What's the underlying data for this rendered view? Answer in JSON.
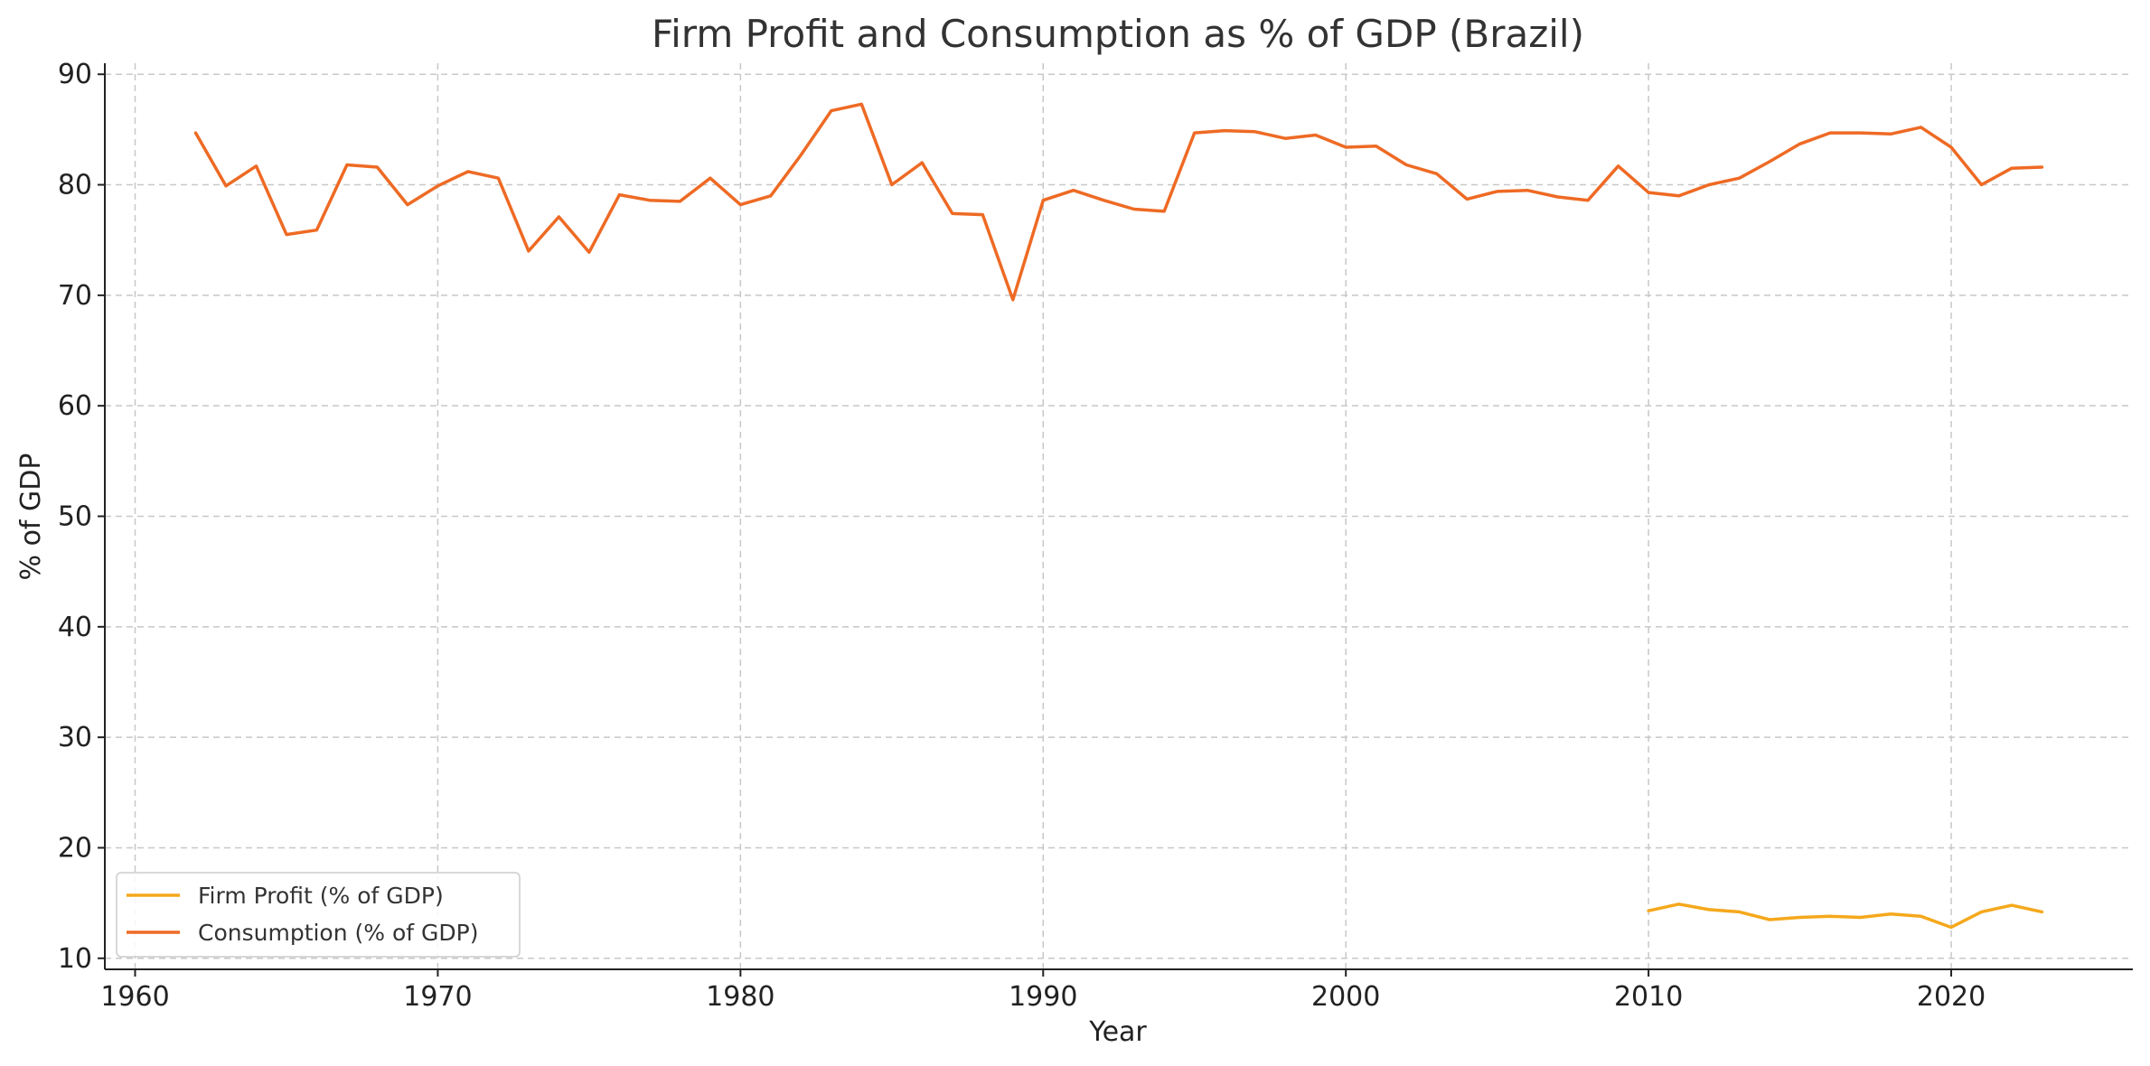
{
  "chart_data": {
    "type": "line",
    "title": "Firm Profit and Consumption as % of GDP (Brazil)",
    "xlabel": "Year",
    "ylabel": "% of GDP",
    "xlim": [
      1959,
      2026
    ],
    "ylim": [
      9,
      91
    ],
    "xticks": [
      1960,
      1970,
      1980,
      1990,
      2000,
      2010,
      2020
    ],
    "yticks": [
      10,
      20,
      30,
      40,
      50,
      60,
      70,
      80,
      90
    ],
    "grid": true,
    "legend_position": "lower-left",
    "series": [
      {
        "name": "Firm Profit (% of GDP)",
        "color": "#f5a81c",
        "points": [
          [
            2010,
            14.3
          ],
          [
            2011,
            14.9
          ],
          [
            2012,
            14.4
          ],
          [
            2013,
            14.2
          ],
          [
            2014,
            13.5
          ],
          [
            2015,
            13.7
          ],
          [
            2016,
            13.8
          ],
          [
            2017,
            13.7
          ],
          [
            2018,
            14.0
          ],
          [
            2019,
            13.8
          ],
          [
            2020,
            12.8
          ],
          [
            2021,
            14.2
          ],
          [
            2022,
            14.8
          ],
          [
            2023,
            14.2
          ]
        ]
      },
      {
        "name": "Consumption (% of GDP)",
        "color": "#ee6a24",
        "points": [
          [
            1962,
            84.7
          ],
          [
            1963,
            79.9
          ],
          [
            1964,
            81.7
          ],
          [
            1965,
            75.5
          ],
          [
            1966,
            75.9
          ],
          [
            1967,
            81.8
          ],
          [
            1968,
            81.6
          ],
          [
            1969,
            78.2
          ],
          [
            1970,
            79.9
          ],
          [
            1971,
            81.2
          ],
          [
            1972,
            80.6
          ],
          [
            1973,
            74.0
          ],
          [
            1974,
            77.1
          ],
          [
            1975,
            73.9
          ],
          [
            1976,
            79.1
          ],
          [
            1977,
            78.6
          ],
          [
            1978,
            78.5
          ],
          [
            1979,
            80.6
          ],
          [
            1980,
            78.2
          ],
          [
            1981,
            79.0
          ],
          [
            1982,
            82.7
          ],
          [
            1983,
            86.7
          ],
          [
            1984,
            87.3
          ],
          [
            1985,
            80.0
          ],
          [
            1986,
            82.0
          ],
          [
            1987,
            77.4
          ],
          [
            1988,
            77.3
          ],
          [
            1989,
            69.6
          ],
          [
            1990,
            78.6
          ],
          [
            1991,
            79.5
          ],
          [
            1992,
            78.6
          ],
          [
            1993,
            77.8
          ],
          [
            1994,
            77.6
          ],
          [
            1995,
            84.7
          ],
          [
            1996,
            84.9
          ],
          [
            1997,
            84.8
          ],
          [
            1998,
            84.2
          ],
          [
            1999,
            84.5
          ],
          [
            2000,
            83.4
          ],
          [
            2001,
            83.5
          ],
          [
            2002,
            81.8
          ],
          [
            2003,
            81.0
          ],
          [
            2004,
            78.7
          ],
          [
            2005,
            79.4
          ],
          [
            2006,
            79.5
          ],
          [
            2007,
            78.9
          ],
          [
            2008,
            78.6
          ],
          [
            2009,
            81.7
          ],
          [
            2010,
            79.3
          ],
          [
            2011,
            79.0
          ],
          [
            2012,
            80.0
          ],
          [
            2013,
            80.6
          ],
          [
            2014,
            82.1
          ],
          [
            2015,
            83.7
          ],
          [
            2016,
            84.7
          ],
          [
            2017,
            84.7
          ],
          [
            2018,
            84.6
          ],
          [
            2019,
            85.2
          ],
          [
            2020,
            83.4
          ],
          [
            2021,
            80.0
          ],
          [
            2022,
            81.5
          ],
          [
            2023,
            81.6
          ]
        ]
      }
    ]
  }
}
